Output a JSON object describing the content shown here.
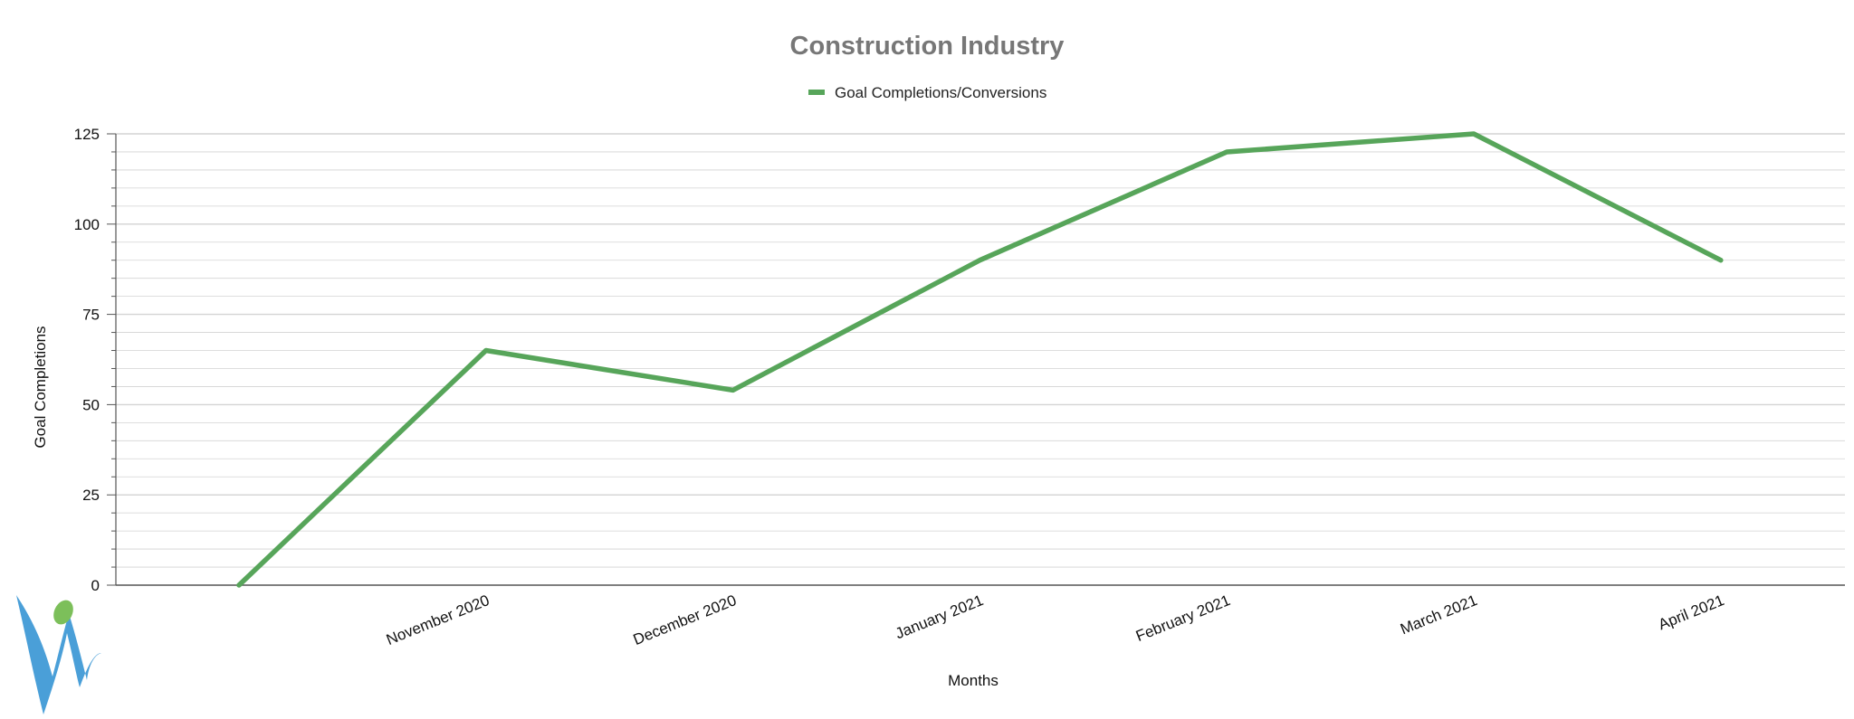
{
  "chart_data": {
    "type": "line",
    "title": "Construction Industry",
    "xlabel": "Months",
    "ylabel": "Goal Completions",
    "categories": [
      "",
      "November 2020",
      "December 2020",
      "January 2021",
      "February 2021",
      "March 2021",
      "April 2021"
    ],
    "series": [
      {
        "name": "Goal Completions/Conversions",
        "values": [
          0,
          65,
          54,
          90,
          120,
          125,
          90
        ]
      }
    ],
    "ylim": [
      0,
      125
    ],
    "yticks": [
      0,
      25,
      50,
      75,
      100,
      125
    ],
    "grid": true,
    "legend_position": "top-center"
  },
  "colors": {
    "series": "#57a55a",
    "title": "#777777",
    "grid": "#d3d3d3",
    "axis": "#555555",
    "logo_blue": "#4a9fd8",
    "logo_green": "#7cbf5a"
  },
  "icons": {
    "logo": "company-logo-icon"
  }
}
